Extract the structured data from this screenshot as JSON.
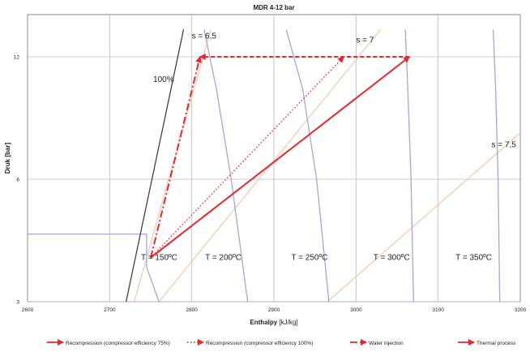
{
  "chart_data": {
    "type": "line",
    "title": "MDR 4-12 bar",
    "xlabel": "Enthalpy",
    "xunit": "[kJ/kg]",
    "ylabel": "Druk [bar]",
    "xlim": [
      2600,
      3200
    ],
    "ylim": [
      3,
      14
    ],
    "y_scale": "log",
    "xticks": [
      2600,
      2700,
      2800,
      2900,
      3000,
      3100,
      3200
    ],
    "yticks": [
      3,
      6,
      12
    ],
    "grid": true,
    "colors": {
      "process": "#e8262b",
      "isotherm": "#a7a6d6",
      "isentrope": "#f3c9a7",
      "saturation": "#333333",
      "grid": "#bdbdbd"
    },
    "saturation_line": {
      "x": [
        2720,
        2790
      ],
      "y": [
        3,
        14
      ]
    },
    "isotherms": [
      {
        "label": "T = 150ºC",
        "x": [
          2600,
          2745,
          2745,
          2760
        ],
        "y": [
          4.4,
          4.4,
          3.65,
          3
        ]
      },
      {
        "label": "T = 200ºC",
        "x": [
          2815,
          2830,
          2848,
          2868
        ],
        "y": [
          14,
          10,
          6,
          3
        ]
      },
      {
        "label": "T = 250ºC",
        "x": [
          2915,
          2935,
          2952,
          2967
        ],
        "y": [
          14,
          10,
          6,
          3
        ]
      },
      {
        "label": "T = 300ºC",
        "x": [
          3060,
          3063,
          3067,
          3070
        ],
        "y": [
          14,
          10,
          6,
          3
        ]
      },
      {
        "label": "T = 350ºC",
        "x": [
          3167,
          3170,
          3173,
          3175
        ],
        "y": [
          14,
          10,
          6,
          3
        ]
      }
    ],
    "isentropes": [
      {
        "label": "s = 6,5",
        "x": [
          2730,
          2823
        ],
        "y": [
          3,
          14
        ]
      },
      {
        "label": "s = 7",
        "x": [
          2760,
          3030
        ],
        "y": [
          3,
          14
        ]
      },
      {
        "label": "s = 7,5",
        "x": [
          2965,
          3200
        ],
        "y": [
          3,
          7.8
        ]
      }
    ],
    "annotations": [
      "100%"
    ],
    "series": [
      {
        "name": "Recompression (compressor efficiency 75%)",
        "style": "solid",
        "x": [
          2750,
          3065
        ],
        "y": [
          3.85,
          12
        ]
      },
      {
        "name": "Recompression (compressor efficiency 100%)",
        "style": "dotted",
        "x": [
          2750,
          2985
        ],
        "y": [
          3.85,
          12
        ]
      },
      {
        "name": "Water injection",
        "style": "dashed",
        "x": [
          3065,
          2810
        ],
        "y": [
          12,
          12
        ]
      },
      {
        "name": "Water injection",
        "style": "dashdot",
        "x": [
          2750,
          2810
        ],
        "y": [
          3.85,
          12
        ]
      }
    ],
    "legend": {
      "placement": "bottom",
      "items": [
        {
          "label": "Recompression (compressor efficiency 75%)",
          "style": "solid"
        },
        {
          "label": "Recompression (compressor efficiency 100%)",
          "style": "dotted"
        },
        {
          "label": "Water injection",
          "style": "dashdot"
        },
        {
          "label": "Thermal process",
          "style": "solid"
        }
      ]
    }
  }
}
